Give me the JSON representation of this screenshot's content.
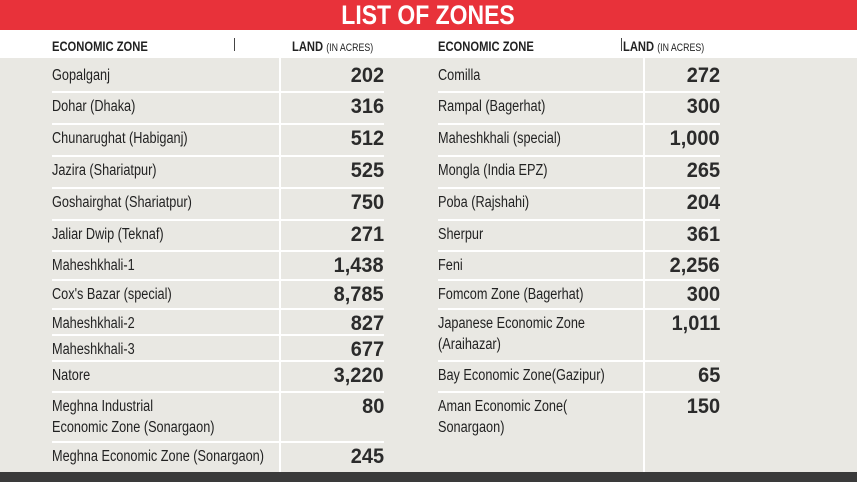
{
  "title": "LIST OF ZONES",
  "header": {
    "zone_label": "ECONOMIC ZONE",
    "land_label": "LAND",
    "land_unit": "(IN ACRES)"
  },
  "left": [
    {
      "zone": "Gopalganj",
      "land": "202"
    },
    {
      "zone": "Dohar (Dhaka)",
      "land": "316"
    },
    {
      "zone": "Chunarughat (Habiganj)",
      "land": "512"
    },
    {
      "zone": "Jazira (Shariatpur)",
      "land": "525"
    },
    {
      "zone": "Goshairghat (Shariatpur)",
      "land": "750"
    },
    {
      "zone": "Jaliar Dwip (Teknaf)",
      "land": "271"
    },
    {
      "zone": "Maheshkhali-1",
      "land": "1,438"
    },
    {
      "zone": "Cox's Bazar (special)",
      "land": "8,785"
    },
    {
      "zone": "Maheshkhali-2",
      "land": "827"
    },
    {
      "zone": "Maheshkhali-3",
      "land": "677"
    },
    {
      "zone": "Natore",
      "land": "3,220"
    },
    {
      "zone": "Meghna Industrial",
      "zone2": "Economic Zone (Sonargaon)",
      "land": "80"
    },
    {
      "zone": "Meghna  Economic Zone (Sonargaon)",
      "land": "245"
    }
  ],
  "right": [
    {
      "zone": "Comilla",
      "land": "272"
    },
    {
      "zone": "Rampal (Bagerhat)",
      "land": "300"
    },
    {
      "zone": "Maheshkhali (special)",
      "land": "1,000"
    },
    {
      "zone": "Mongla (India EPZ)",
      "land": "265"
    },
    {
      "zone": "Poba (Rajshahi)",
      "land": "204"
    },
    {
      "zone": "Sherpur",
      "land": "361"
    },
    {
      "zone": "Feni",
      "land": "2,256"
    },
    {
      "zone": "Fomcom Zone (Bagerhat)",
      "land": "300"
    },
    {
      "zone": "Japanese Economic Zone",
      "zone2": "(Araihazar)",
      "land": "1,011"
    },
    {
      "zone": "Bay Economic Zone(Gazipur)",
      "land": "65"
    },
    {
      "zone": "Aman Economic Zone(",
      "zone2": "Sonargaon)",
      "land": "150"
    }
  ],
  "colors": {
    "title_bg": "#e8323a",
    "body_bg": "#e9e8e3",
    "footer_bar": "#3a3a3a"
  }
}
